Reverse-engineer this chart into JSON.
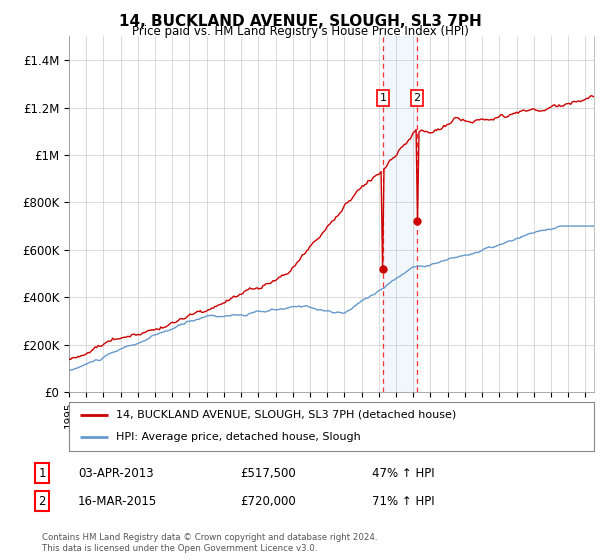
{
  "title": "14, BUCKLAND AVENUE, SLOUGH, SL3 7PH",
  "subtitle": "Price paid vs. HM Land Registry's House Price Index (HPI)",
  "ylabel_ticks": [
    "£0",
    "£200K",
    "£400K",
    "£600K",
    "£800K",
    "£1M",
    "£1.2M",
    "£1.4M"
  ],
  "ytick_values": [
    0,
    200000,
    400000,
    600000,
    800000,
    1000000,
    1200000,
    1400000
  ],
  "ylim": [
    0,
    1500000
  ],
  "xlim_start": 1995.0,
  "xlim_end": 2025.5,
  "hpi_color": "#6699cc",
  "price_color": "#cc0000",
  "sale1_date": 2013.25,
  "sale1_price": 517500,
  "sale1_label": "1",
  "sale2_date": 2015.21,
  "sale2_price": 720000,
  "sale2_label": "2",
  "legend_line1": "14, BUCKLAND AVENUE, SLOUGH, SL3 7PH (detached house)",
  "legend_line2": "HPI: Average price, detached house, Slough",
  "table_row1": [
    "1",
    "03-APR-2013",
    "£517,500",
    "47% ↑ HPI"
  ],
  "table_row2": [
    "2",
    "16-MAR-2015",
    "£720,000",
    "71% ↑ HPI"
  ],
  "footnote": "Contains HM Land Registry data © Crown copyright and database right 2024.\nThis data is licensed under the Open Government Licence v3.0.",
  "background_color": "#ffffff",
  "grid_color": "#cccccc"
}
